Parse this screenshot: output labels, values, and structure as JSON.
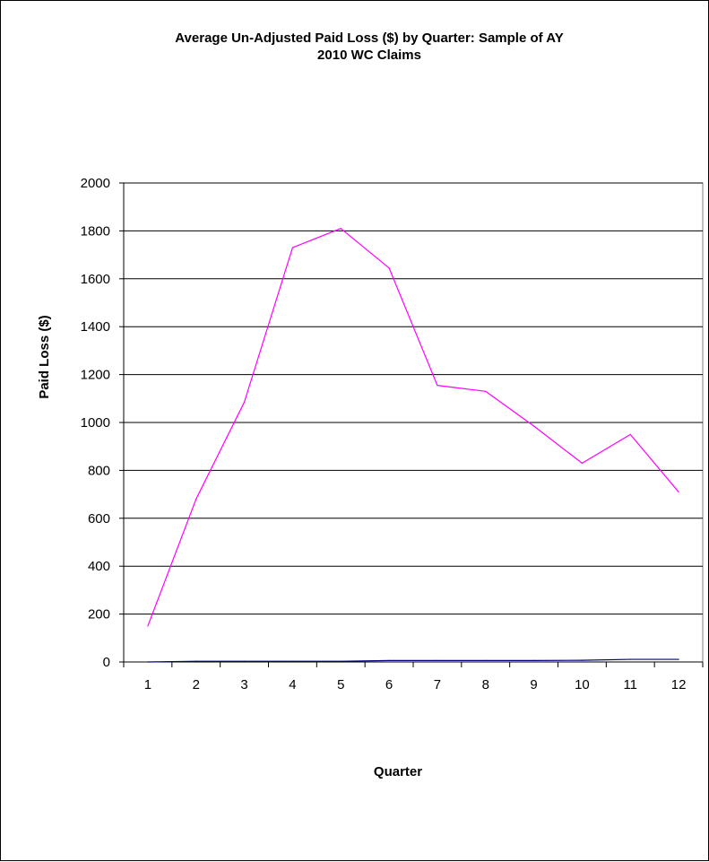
{
  "chart_data": {
    "type": "line",
    "title": "Average Un-Adjusted Paid Loss ($) by Quarter: Sample of  AY",
    "subtitle": "2010 WC Claims",
    "xlabel": "Quarter",
    "ylabel": "Paid Loss ($)",
    "categories": [
      "1",
      "2",
      "3",
      "4",
      "5",
      "6",
      "7",
      "8",
      "9",
      "10",
      "11",
      "12"
    ],
    "ylim": [
      0,
      2000
    ],
    "yticks": [
      "0",
      "200",
      "400",
      "600",
      "800",
      "1000",
      "1200",
      "1400",
      "1600",
      "1800",
      "2000"
    ],
    "grid": true,
    "series": [
      {
        "color": "#ff00ff",
        "values": [
          150,
          680,
          1085,
          1730,
          1810,
          1645,
          1155,
          1130,
          985,
          830,
          950,
          710
        ]
      },
      {
        "color": "#000080",
        "values": [
          0,
          3,
          3,
          3,
          3,
          6,
          6,
          6,
          6,
          7,
          11,
          11
        ]
      }
    ]
  }
}
